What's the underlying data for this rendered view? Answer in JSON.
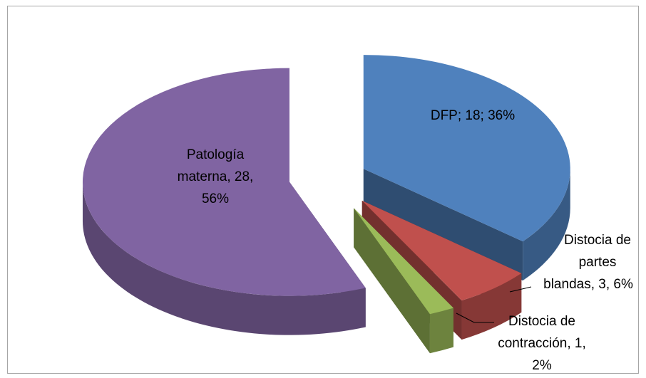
{
  "chart_data": {
    "type": "pie3d",
    "values": [
      18,
      3,
      1,
      28
    ],
    "value_labels": [
      [
        "DFP; 18; 36%"
      ],
      [
        "Distocia de",
        "partes",
        "blandas, 3, 6%"
      ],
      [
        "Distocia de",
        "contracción, 1,",
        "2%"
      ],
      [
        "Patología",
        "materna, 28,",
        "56%"
      ]
    ],
    "colors": [
      "#4f81bd",
      "#c0504d",
      "#9bbb59",
      "#8064a2"
    ]
  }
}
